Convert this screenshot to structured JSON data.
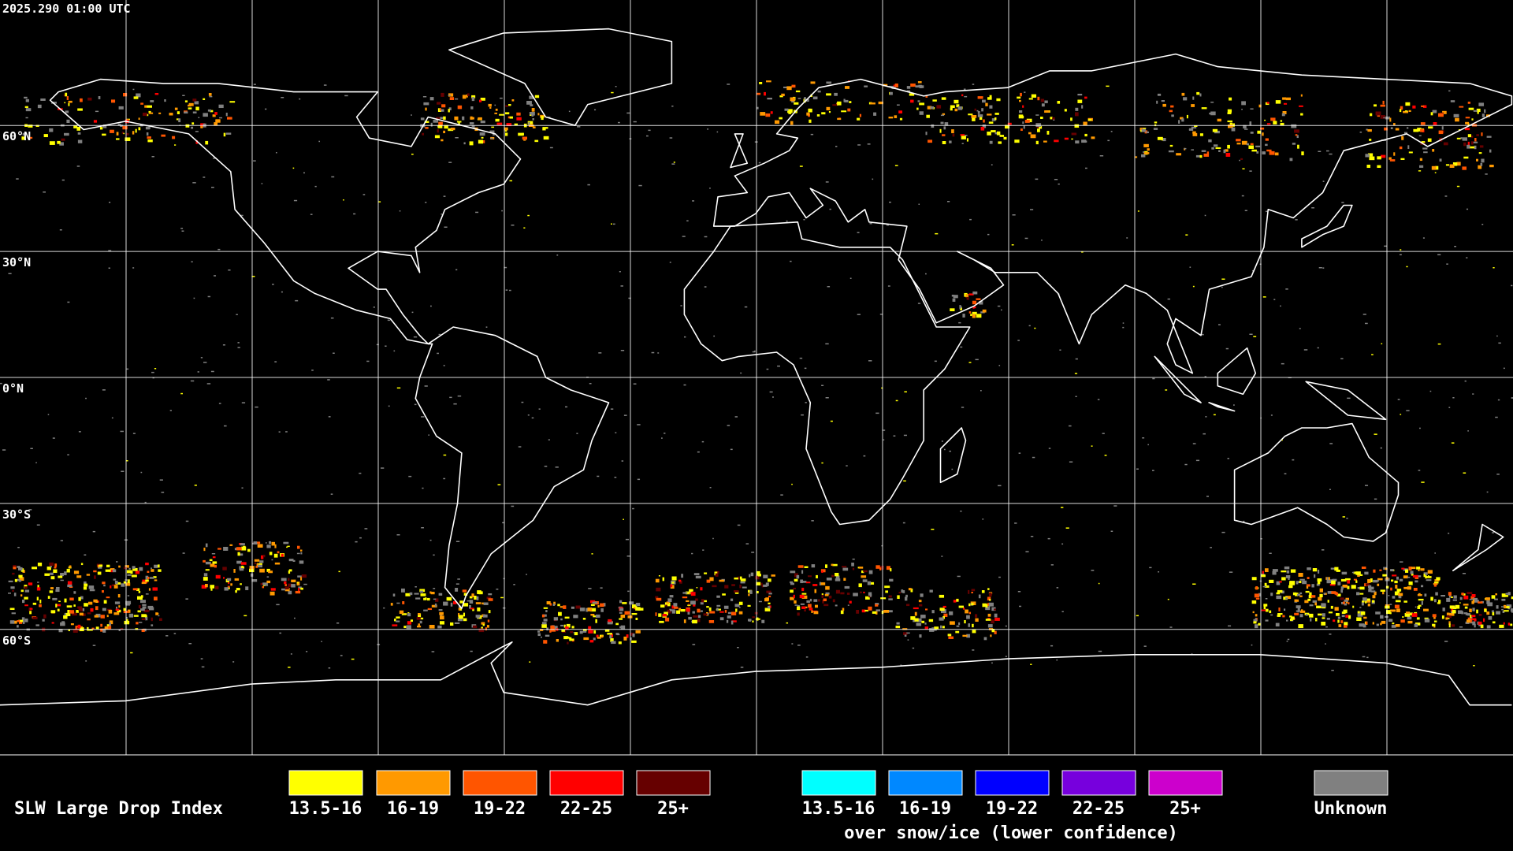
{
  "timestamp": "2025.290 01:00 UTC",
  "latitude_labels": [
    "60°N",
    "30°N",
    "0°N",
    "30°S",
    "60°S"
  ],
  "legend": {
    "title": "SLW Large Drop Index",
    "liquid": [
      {
        "label": "13.5-16",
        "color": "#ffff00"
      },
      {
        "label": "16-19",
        "color": "#ff9900"
      },
      {
        "label": "19-22",
        "color": "#ff5500"
      },
      {
        "label": "22-25",
        "color": "#ff0000"
      },
      {
        "label": "25+",
        "color": "#660000"
      }
    ],
    "snow_ice": [
      {
        "label": "13.5-16",
        "color": "#00ffff"
      },
      {
        "label": "16-19",
        "color": "#0088ff"
      },
      {
        "label": "19-22",
        "color": "#0000ff"
      },
      {
        "label": "22-25",
        "color": "#7700dd"
      },
      {
        "label": "25+",
        "color": "#cc00cc"
      }
    ],
    "snow_ice_note": "over snow/ice (lower confidence)",
    "unknown": {
      "label": "Unknown",
      "color": "#808080"
    }
  }
}
